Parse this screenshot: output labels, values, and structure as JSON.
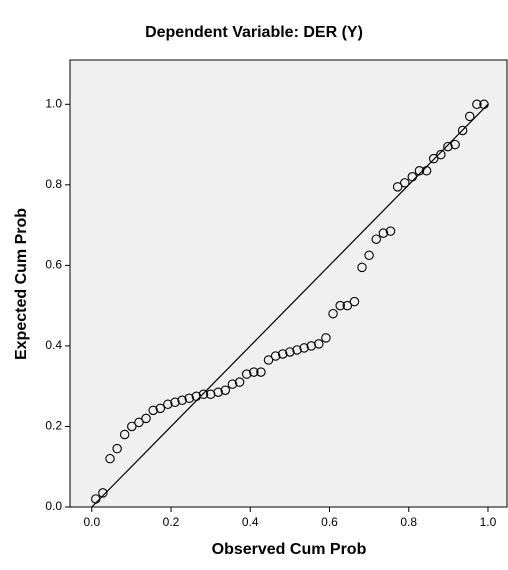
{
  "chart_data": {
    "type": "scatter",
    "title": "Dependent Variable: DER (Y)",
    "x_label": "Observed Cum Prob",
    "y_label": "Expected Cum Prob",
    "x": [
      0.01,
      0.028,
      0.046,
      0.064,
      0.083,
      0.101,
      0.119,
      0.137,
      0.155,
      0.173,
      0.192,
      0.21,
      0.228,
      0.246,
      0.264,
      0.282,
      0.3,
      0.319,
      0.337,
      0.355,
      0.373,
      0.391,
      0.409,
      0.427,
      0.446,
      0.464,
      0.482,
      0.5,
      0.518,
      0.536,
      0.554,
      0.573,
      0.591,
      0.609,
      0.627,
      0.645,
      0.663,
      0.682,
      0.7,
      0.718,
      0.736,
      0.754,
      0.772,
      0.79,
      0.809,
      0.827,
      0.845,
      0.863,
      0.881,
      0.899,
      0.917,
      0.936,
      0.954,
      0.972,
      0.99
    ],
    "values": [
      0.02,
      0.035,
      0.12,
      0.145,
      0.18,
      0.2,
      0.21,
      0.22,
      0.24,
      0.245,
      0.255,
      0.26,
      0.265,
      0.27,
      0.275,
      0.28,
      0.28,
      0.285,
      0.29,
      0.305,
      0.31,
      0.33,
      0.335,
      0.335,
      0.365,
      0.375,
      0.38,
      0.385,
      0.39,
      0.395,
      0.4,
      0.405,
      0.42,
      0.48,
      0.5,
      0.5,
      0.51,
      0.595,
      0.625,
      0.665,
      0.68,
      0.685,
      0.795,
      0.805,
      0.82,
      0.835,
      0.835,
      0.865,
      0.875,
      0.895,
      0.9,
      0.935,
      0.97,
      1.0,
      1.0
    ],
    "marker_color": "#000000",
    "plot_background": "#f0f0f0",
    "xlim": [
      -0.055,
      1.048
    ],
    "ylim": [
      0,
      1.11
    ],
    "xticks": [
      {
        "value": 0,
        "label": "0.0"
      },
      {
        "value": 0.2,
        "label": "0.2"
      },
      {
        "value": 0.4,
        "label": "0.4"
      },
      {
        "value": 0.6,
        "label": "0.6"
      },
      {
        "value": 0.8,
        "label": "0.8"
      },
      {
        "value": 1,
        "label": "1.0"
      }
    ],
    "yticks": [
      {
        "value": 0,
        "label": "0.0"
      },
      {
        "value": 0.2,
        "label": "0.2"
      },
      {
        "value": 0.4,
        "label": "0.4"
      },
      {
        "value": 0.6,
        "label": "0.6"
      },
      {
        "value": 0.8,
        "label": "0.8"
      },
      {
        "value": 1,
        "label": "1.0"
      }
    ],
    "grid": false
  }
}
